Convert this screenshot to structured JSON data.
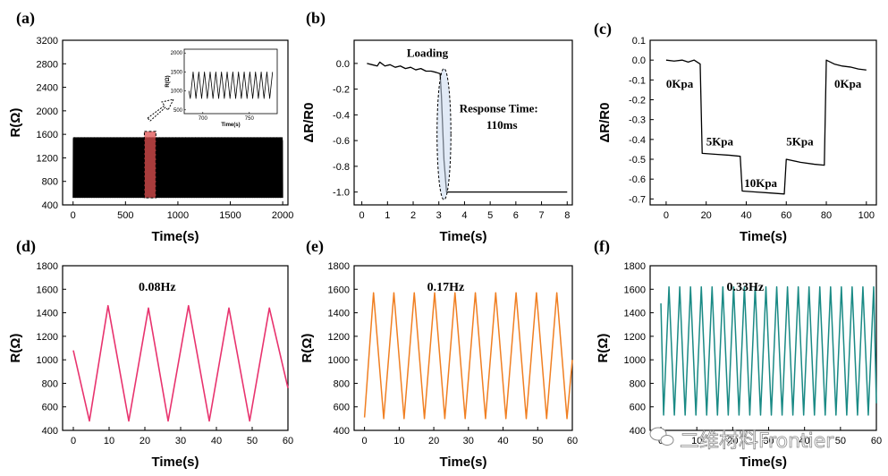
{
  "chart_data": [
    {
      "id": "a",
      "panel_label": "(a)",
      "type": "line",
      "xlabel": "Time(s)",
      "ylabel": "R(Ω)",
      "xlim": [
        -100,
        2050
      ],
      "ylim": [
        400,
        3200
      ],
      "xticks": [
        0,
        500,
        1000,
        1500,
        2000
      ],
      "yticks": [
        400,
        800,
        1200,
        1600,
        2000,
        2400,
        2800,
        3200
      ],
      "series": [
        {
          "color": "#000000",
          "x_start": 0,
          "x_end": 2000,
          "min": 520,
          "max": 1550
        }
      ],
      "highlight": {
        "x_start": 680,
        "x_end": 790,
        "y_min": 520,
        "y_max": 1650,
        "color": "#e05050"
      },
      "inset": {
        "xlabel": "Time(s)",
        "ylabel": "R(Ω)",
        "xlim": [
          680,
          780
        ],
        "ylim": [
          400,
          2100
        ],
        "xticks": [
          700,
          750
        ],
        "yticks": [
          500,
          1000,
          1500,
          2000
        ],
        "series": [
          {
            "color": "#000000",
            "x_start": 685,
            "x_end": 775,
            "min": 800,
            "max": 1500,
            "period": 6.1
          }
        ]
      }
    },
    {
      "id": "b",
      "panel_label": "(b)",
      "type": "line",
      "xlabel": "Time(s)",
      "ylabel": "ΔR/R0",
      "xlim": [
        -0.3,
        8.2
      ],
      "ylim": [
        -1.1,
        0.18
      ],
      "xticks": [
        0,
        1,
        2,
        3,
        4,
        5,
        6,
        7,
        8
      ],
      "yticks": [
        0.0,
        -0.2,
        -0.4,
        -0.6,
        -0.8,
        -1.0
      ],
      "ytick_labels": [
        "0.0",
        "-0.2",
        "-0.4",
        "-0.6",
        "-0.8",
        "-1.0"
      ],
      "series": [
        {
          "color": "#000000",
          "points": [
            [
              0.2,
              0.0
            ],
            [
              0.4,
              -0.01
            ],
            [
              0.6,
              -0.02
            ],
            [
              0.7,
              0.01
            ],
            [
              0.9,
              -0.02
            ],
            [
              1.1,
              -0.01
            ],
            [
              1.3,
              -0.03
            ],
            [
              1.5,
              -0.02
            ],
            [
              1.7,
              -0.04
            ],
            [
              1.9,
              -0.03
            ],
            [
              2.1,
              -0.05
            ],
            [
              2.3,
              -0.04
            ],
            [
              2.5,
              -0.06
            ],
            [
              2.7,
              -0.06
            ],
            [
              2.9,
              -0.07
            ],
            [
              3.05,
              -0.08
            ],
            [
              3.1,
              -0.25
            ],
            [
              3.2,
              -0.75
            ],
            [
              3.3,
              -1.0
            ],
            [
              4.0,
              -1.0
            ],
            [
              5.0,
              -1.0
            ],
            [
              6.0,
              -1.0
            ],
            [
              7.0,
              -1.0
            ],
            [
              8.0,
              -1.0
            ]
          ]
        }
      ],
      "annotations": [
        {
          "text": "Loading",
          "x": 1.75,
          "y": 0.05
        },
        {
          "text": "Response Time:",
          "x": 3.8,
          "y": -0.38
        },
        {
          "text": "110ms",
          "x": 4.85,
          "y": -0.51
        }
      ],
      "ellipse": {
        "cx": 3.2,
        "cy": -0.55,
        "rx": 0.27,
        "ry": 0.51
      }
    },
    {
      "id": "c",
      "panel_label": "(c)",
      "type": "line",
      "xlabel": "Time(s)",
      "ylabel": "ΔR/R0",
      "xlim": [
        -8,
        105
      ],
      "ylim": [
        -0.73,
        0.1
      ],
      "xticks": [
        0,
        20,
        40,
        60,
        80,
        100
      ],
      "yticks": [
        0.1,
        0.0,
        -0.1,
        -0.2,
        -0.3,
        -0.4,
        -0.5,
        -0.6,
        -0.7
      ],
      "ytick_labels": [
        "0.1",
        "0.0",
        "-0.1",
        "-0.2",
        "-0.3",
        "-0.4",
        "-0.5",
        "-0.6",
        "-0.7"
      ],
      "series": [
        {
          "color": "#000000",
          "points": [
            [
              0,
              0.0
            ],
            [
              4,
              -0.005
            ],
            [
              8,
              0.0
            ],
            [
              11,
              -0.01
            ],
            [
              14,
              0.0
            ],
            [
              17,
              -0.02
            ],
            [
              18,
              -0.47
            ],
            [
              25,
              -0.475
            ],
            [
              32,
              -0.48
            ],
            [
              37,
              -0.485
            ],
            [
              38,
              -0.66
            ],
            [
              45,
              -0.665
            ],
            [
              52,
              -0.67
            ],
            [
              59,
              -0.675
            ],
            [
              60,
              -0.5
            ],
            [
              67,
              -0.515
            ],
            [
              74,
              -0.525
            ],
            [
              79,
              -0.53
            ],
            [
              80,
              0.0
            ],
            [
              84,
              -0.02
            ],
            [
              88,
              -0.03
            ],
            [
              92,
              -0.035
            ],
            [
              96,
              -0.045
            ],
            [
              100,
              -0.05
            ]
          ]
        }
      ],
      "annotations": [
        {
          "text": "0Kpa",
          "x": 0,
          "y": -0.14
        },
        {
          "text": "5Kpa",
          "x": 20,
          "y": -0.43
        },
        {
          "text": "10Kpa",
          "x": 39,
          "y": -0.64
        },
        {
          "text": "5Kpa",
          "x": 60,
          "y": -0.43
        },
        {
          "text": "0Kpa",
          "x": 84,
          "y": -0.14
        }
      ]
    },
    {
      "id": "d",
      "panel_label": "(d)",
      "type": "line",
      "xlabel": "Time(s)",
      "ylabel": "R(Ω)",
      "xlim": [
        -3,
        60
      ],
      "ylim": [
        400,
        1800
      ],
      "xticks": [
        0,
        10,
        20,
        30,
        40,
        50,
        60
      ],
      "yticks": [
        400,
        600,
        800,
        1000,
        1200,
        1400,
        1600,
        1800
      ],
      "freq_label": "0.08Hz",
      "series": [
        {
          "color": "#e8336e",
          "points": [
            [
              0,
              1080
            ],
            [
              4.5,
              480
            ],
            [
              9.7,
              1460
            ],
            [
              15.5,
              480
            ],
            [
              21,
              1440
            ],
            [
              26.5,
              480
            ],
            [
              32.2,
              1460
            ],
            [
              38,
              480
            ],
            [
              43.5,
              1440
            ],
            [
              49.3,
              480
            ],
            [
              54.8,
              1440
            ],
            [
              60,
              760
            ]
          ]
        }
      ]
    },
    {
      "id": "e",
      "panel_label": "(e)",
      "type": "line",
      "xlabel": "Time(s)",
      "ylabel": "R(Ω)",
      "xlim": [
        -3,
        60
      ],
      "ylim": [
        400,
        1800
      ],
      "xticks": [
        0,
        10,
        20,
        30,
        40,
        50,
        60
      ],
      "yticks": [
        400,
        600,
        800,
        1000,
        1200,
        1400,
        1600,
        1800
      ],
      "freq_label": "0.17Hz",
      "series": [
        {
          "color": "#f07f22",
          "x_start": 0,
          "x_end": 60,
          "min": 500,
          "max": 1570,
          "period": 5.88,
          "phase": 0.35
        }
      ]
    },
    {
      "id": "f",
      "panel_label": "(f)",
      "type": "line",
      "xlabel": "Time(s)",
      "ylabel": "R(Ω)",
      "xlim": [
        -3,
        60
      ],
      "ylim": [
        400,
        1800
      ],
      "xticks": [
        0,
        10,
        20,
        30,
        40,
        50,
        60
      ],
      "yticks": [
        400,
        600,
        800,
        1000,
        1200,
        1400,
        1600,
        1800
      ],
      "freq_label": "0.33Hz",
      "series": [
        {
          "color": "#1a8a85",
          "x_start": 0,
          "x_end": 60,
          "min": 530,
          "max": 1620,
          "period": 3.0,
          "phase": 0.0
        }
      ]
    }
  ],
  "watermark": {
    "text": "二维材料Frontier",
    "icon": "wechat-icon"
  }
}
